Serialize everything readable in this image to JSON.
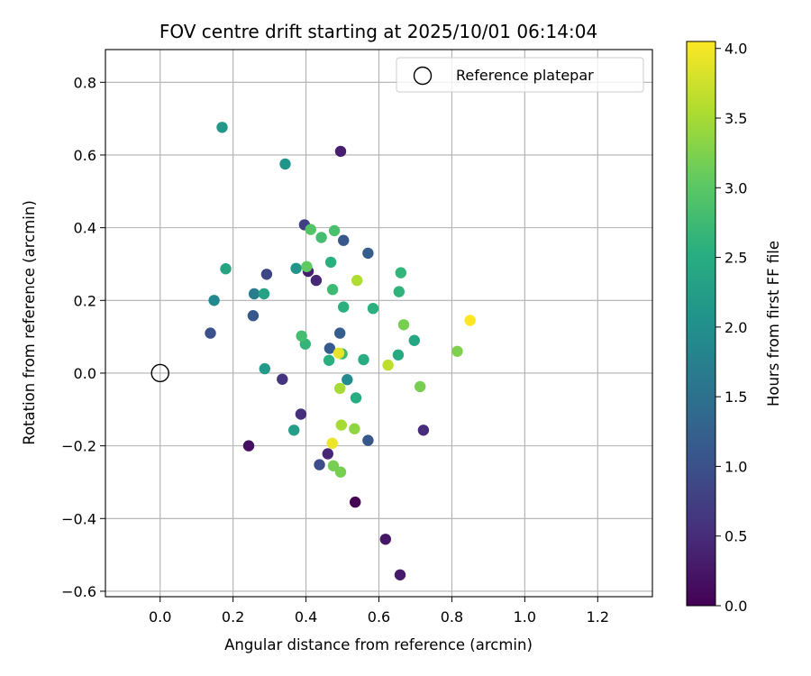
{
  "chart_data": {
    "type": "scatter",
    "title": "FOV centre drift starting at 2025/10/01 06:14:04",
    "xlabel": "Angular distance from reference (arcmin)",
    "ylabel": "Rotation from reference (arcmin)",
    "xlim": [
      -0.15,
      1.35
    ],
    "ylim": [
      -0.615,
      0.89
    ],
    "xticks": [
      0.0,
      0.2,
      0.4,
      0.6,
      0.8,
      1.0,
      1.2
    ],
    "xtick_labels": [
      "0.0",
      "0.2",
      "0.4",
      "0.6",
      "0.8",
      "1.0",
      "1.2"
    ],
    "yticks": [
      -0.6,
      -0.4,
      -0.2,
      0.0,
      0.2,
      0.4,
      0.6,
      0.8
    ],
    "ytick_labels": [
      "−0.6",
      "−0.4",
      "−0.2",
      "0.0",
      "0.2",
      "0.4",
      "0.6",
      "0.8"
    ],
    "grid": true,
    "colormap": "viridis",
    "colorbar": {
      "label": "Hours from first FF file",
      "range": [
        0.0,
        4.05
      ],
      "ticks": [
        0.0,
        0.5,
        1.0,
        1.5,
        2.0,
        2.5,
        3.0,
        3.5,
        4.0
      ],
      "tick_labels": [
        "0.0",
        "0.5",
        "1.0",
        "1.5",
        "2.0",
        "2.5",
        "3.0",
        "3.5",
        "4.0"
      ]
    },
    "legend": {
      "placement": "top-right",
      "entries": [
        {
          "label": "Reference platepar",
          "marker": "open-circle"
        }
      ]
    },
    "reference_point": {
      "x": 0.0,
      "y": 0.0
    },
    "points": [
      {
        "x": 0.535,
        "y": -0.355,
        "hours": 0.0
      },
      {
        "x": 0.243,
        "y": -0.2,
        "hours": 0.15
      },
      {
        "x": 0.618,
        "y": -0.457,
        "hours": 0.25
      },
      {
        "x": 0.658,
        "y": -0.555,
        "hours": 0.3
      },
      {
        "x": 0.495,
        "y": 0.61,
        "hours": 0.35
      },
      {
        "x": 0.406,
        "y": 0.28,
        "hours": 0.35
      },
      {
        "x": 0.428,
        "y": 0.255,
        "hours": 0.45
      },
      {
        "x": 0.46,
        "y": -0.222,
        "hours": 0.45
      },
      {
        "x": 0.722,
        "y": -0.157,
        "hours": 0.5
      },
      {
        "x": 0.386,
        "y": -0.113,
        "hours": 0.55
      },
      {
        "x": 0.335,
        "y": -0.017,
        "hours": 0.6
      },
      {
        "x": 0.396,
        "y": 0.408,
        "hours": 0.75
      },
      {
        "x": 0.292,
        "y": 0.272,
        "hours": 0.85
      },
      {
        "x": 0.437,
        "y": -0.252,
        "hours": 0.95
      },
      {
        "x": 0.138,
        "y": 0.11,
        "hours": 1.0
      },
      {
        "x": 0.255,
        "y": 0.158,
        "hours": 1.1
      },
      {
        "x": 0.503,
        "y": 0.365,
        "hours": 1.1
      },
      {
        "x": 0.57,
        "y": -0.185,
        "hours": 1.1
      },
      {
        "x": 0.465,
        "y": 0.068,
        "hours": 1.15
      },
      {
        "x": 0.493,
        "y": 0.11,
        "hours": 1.2
      },
      {
        "x": 0.57,
        "y": 0.33,
        "hours": 1.2
      },
      {
        "x": 0.258,
        "y": 0.218,
        "hours": 1.7
      },
      {
        "x": 0.148,
        "y": 0.2,
        "hours": 1.9
      },
      {
        "x": 0.513,
        "y": -0.018,
        "hours": 1.95
      },
      {
        "x": 0.343,
        "y": 0.575,
        "hours": 2.1
      },
      {
        "x": 0.373,
        "y": 0.288,
        "hours": 2.1
      },
      {
        "x": 0.17,
        "y": 0.676,
        "hours": 2.15
      },
      {
        "x": 0.287,
        "y": 0.012,
        "hours": 2.2
      },
      {
        "x": 0.367,
        "y": -0.157,
        "hours": 2.25
      },
      {
        "x": 0.285,
        "y": 0.218,
        "hours": 2.3
      },
      {
        "x": 0.18,
        "y": 0.287,
        "hours": 2.35
      },
      {
        "x": 0.697,
        "y": 0.09,
        "hours": 2.4
      },
      {
        "x": 0.653,
        "y": 0.05,
        "hours": 2.45
      },
      {
        "x": 0.537,
        "y": -0.068,
        "hours": 2.5
      },
      {
        "x": 0.558,
        "y": 0.037,
        "hours": 2.5
      },
      {
        "x": 0.463,
        "y": 0.035,
        "hours": 2.55
      },
      {
        "x": 0.503,
        "y": 0.182,
        "hours": 2.55
      },
      {
        "x": 0.584,
        "y": 0.178,
        "hours": 2.55
      },
      {
        "x": 0.655,
        "y": 0.224,
        "hours": 2.6
      },
      {
        "x": 0.66,
        "y": 0.276,
        "hours": 2.65
      },
      {
        "x": 0.468,
        "y": 0.305,
        "hours": 2.55
      },
      {
        "x": 0.473,
        "y": 0.23,
        "hours": 2.75
      },
      {
        "x": 0.398,
        "y": 0.08,
        "hours": 2.65
      },
      {
        "x": 0.388,
        "y": 0.102,
        "hours": 2.8
      },
      {
        "x": 0.499,
        "y": 0.053,
        "hours": 2.75
      },
      {
        "x": 0.442,
        "y": 0.373,
        "hours": 2.8
      },
      {
        "x": 0.478,
        "y": 0.392,
        "hours": 2.85
      },
      {
        "x": 0.413,
        "y": 0.395,
        "hours": 2.95
      },
      {
        "x": 0.402,
        "y": 0.293,
        "hours": 3.05
      },
      {
        "x": 0.668,
        "y": 0.133,
        "hours": 3.2
      },
      {
        "x": 0.713,
        "y": -0.037,
        "hours": 3.2
      },
      {
        "x": 0.475,
        "y": -0.255,
        "hours": 3.2
      },
      {
        "x": 0.495,
        "y": -0.272,
        "hours": 3.2
      },
      {
        "x": 0.815,
        "y": 0.06,
        "hours": 3.25
      },
      {
        "x": 0.533,
        "y": -0.153,
        "hours": 3.35
      },
      {
        "x": 0.497,
        "y": -0.143,
        "hours": 3.5
      },
      {
        "x": 0.493,
        "y": -0.042,
        "hours": 3.5
      },
      {
        "x": 0.54,
        "y": 0.255,
        "hours": 3.55
      },
      {
        "x": 0.625,
        "y": 0.022,
        "hours": 3.65
      },
      {
        "x": 0.49,
        "y": 0.055,
        "hours": 3.9
      },
      {
        "x": 0.472,
        "y": -0.193,
        "hours": 3.95
      },
      {
        "x": 0.85,
        "y": 0.145,
        "hours": 4.05
      }
    ]
  }
}
